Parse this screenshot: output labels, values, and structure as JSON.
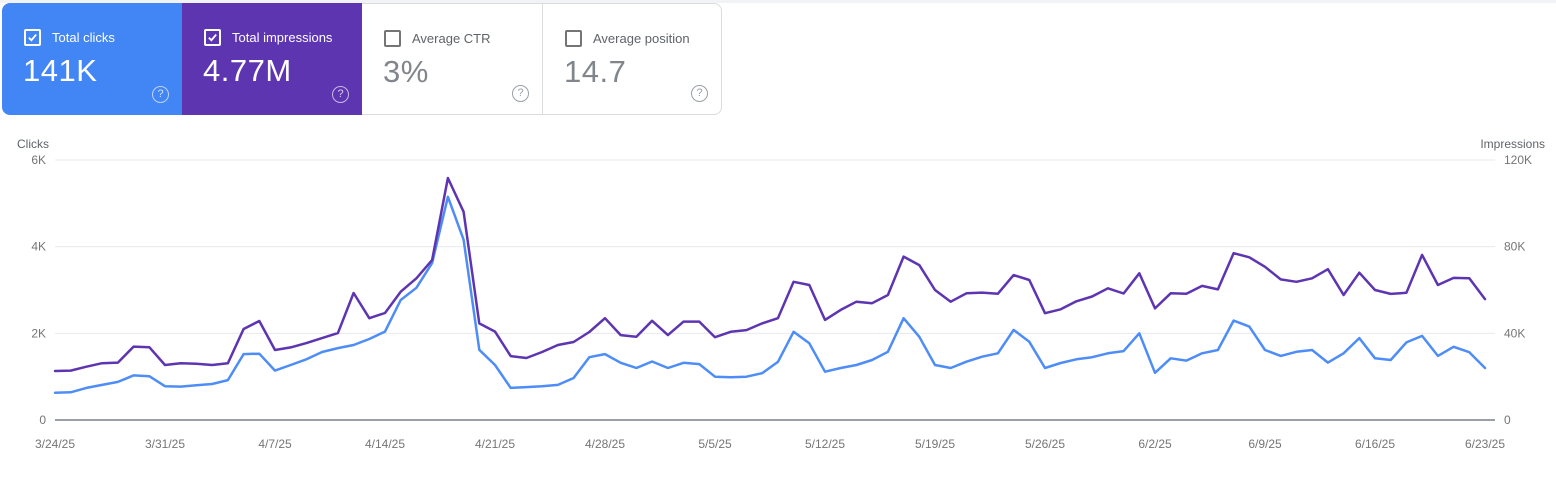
{
  "icons": {
    "help": "?"
  },
  "colors": {
    "clicks_blue": "#4285f4",
    "impressions_purple": "#5e35b1",
    "grid": "#e8eaed",
    "axis_line": "#9aa0a6"
  },
  "cards": [
    {
      "label": "Total clicks",
      "value": "141K",
      "checked": true,
      "variant": "colored",
      "bg": "#4285f4"
    },
    {
      "label": "Total impressions",
      "value": "4.77M",
      "checked": true,
      "variant": "colored",
      "bg": "#5e35b1"
    },
    {
      "label": "Average CTR",
      "value": "3%",
      "checked": false,
      "variant": "plain",
      "bg": "#ffffff"
    },
    {
      "label": "Average position",
      "value": "14.7",
      "checked": false,
      "variant": "plain",
      "bg": "#ffffff"
    }
  ],
  "chart_data": {
    "type": "line",
    "grid": true,
    "grid_color": "#e8eaed",
    "axis_line_color": "#9aa0a6",
    "left_axis": {
      "label": "Clicks",
      "max": 6000,
      "ticks": [
        {
          "label": "0",
          "value": 0
        },
        {
          "label": "2K",
          "value": 2000
        },
        {
          "label": "4K",
          "value": 4000
        },
        {
          "label": "6K",
          "value": 6000
        }
      ]
    },
    "right_axis": {
      "label": "Impressions",
      "max": 120000,
      "ticks": [
        {
          "label": "0",
          "value": 0
        },
        {
          "label": "40K",
          "value": 40000
        },
        {
          "label": "80K",
          "value": 80000
        },
        {
          "label": "120K",
          "value": 120000
        }
      ]
    },
    "x_tick_labels": [
      "3/24/25",
      "3/31/25",
      "4/7/25",
      "4/14/25",
      "4/21/25",
      "4/28/25",
      "5/5/25",
      "5/12/25",
      "5/19/25",
      "5/26/25",
      "6/2/25",
      "6/9/25",
      "6/16/25",
      "6/23/25"
    ],
    "dates": [
      "3/24/25",
      "3/25/25",
      "3/26/25",
      "3/27/25",
      "3/28/25",
      "3/29/25",
      "3/30/25",
      "3/31/25",
      "4/1/25",
      "4/2/25",
      "4/3/25",
      "4/4/25",
      "4/5/25",
      "4/6/25",
      "4/7/25",
      "4/8/25",
      "4/9/25",
      "4/10/25",
      "4/11/25",
      "4/12/25",
      "4/13/25",
      "4/14/25",
      "4/15/25",
      "4/16/25",
      "4/17/25",
      "4/18/25",
      "4/19/25",
      "4/20/25",
      "4/21/25",
      "4/22/25",
      "4/23/25",
      "4/24/25",
      "4/25/25",
      "4/26/25",
      "4/27/25",
      "4/28/25",
      "4/29/25",
      "4/30/25",
      "5/1/25",
      "5/2/25",
      "5/3/25",
      "5/4/25",
      "5/5/25",
      "5/6/25",
      "5/7/25",
      "5/8/25",
      "5/9/25",
      "5/10/25",
      "5/11/25",
      "5/12/25",
      "5/13/25",
      "5/14/25",
      "5/15/25",
      "5/16/25",
      "5/17/25",
      "5/18/25",
      "5/19/25",
      "5/20/25",
      "5/21/25",
      "5/22/25",
      "5/23/25",
      "5/24/25",
      "5/25/25",
      "5/26/25",
      "5/27/25",
      "5/28/25",
      "5/29/25",
      "5/30/25",
      "5/31/25",
      "6/1/25",
      "6/2/25",
      "6/3/25",
      "6/4/25",
      "6/5/25",
      "6/6/25",
      "6/7/25",
      "6/8/25",
      "6/9/25",
      "6/10/25",
      "6/11/25",
      "6/12/25",
      "6/13/25",
      "6/14/25",
      "6/15/25",
      "6/16/25",
      "6/17/25",
      "6/18/25",
      "6/19/25",
      "6/20/25",
      "6/21/25",
      "6/22/25",
      "6/23/25"
    ],
    "series": [
      {
        "name": "Total clicks",
        "axis": "left",
        "color": "#4e8df7",
        "values": [
          630,
          640,
          740,
          810,
          880,
          1030,
          1010,
          780,
          770,
          800,
          830,
          920,
          1520,
          1530,
          1140,
          1270,
          1400,
          1570,
          1660,
          1730,
          1870,
          2040,
          2770,
          3050,
          3620,
          5150,
          4160,
          1620,
          1270,
          740,
          760,
          780,
          810,
          970,
          1450,
          1520,
          1320,
          1200,
          1350,
          1200,
          1320,
          1290,
          1000,
          985,
          1000,
          1080,
          1340,
          2035,
          1770,
          1115,
          1200,
          1270,
          1385,
          1575,
          2350,
          1920,
          1270,
          1200,
          1345,
          1460,
          1540,
          2080,
          1805,
          1200,
          1315,
          1400,
          1450,
          1540,
          1590,
          2000,
          1090,
          1425,
          1370,
          1540,
          1615,
          2295,
          2155,
          1615,
          1480,
          1575,
          1615,
          1325,
          1540,
          1890,
          1425,
          1385,
          1790,
          1940,
          1480,
          1690,
          1565,
          1200
        ]
      },
      {
        "name": "Total impressions",
        "axis": "right",
        "color": "#5e35b1",
        "values": [
          22600,
          22800,
          24600,
          26200,
          26500,
          33900,
          33600,
          25400,
          26200,
          26000,
          25400,
          26200,
          42000,
          45700,
          32300,
          33500,
          35500,
          37800,
          40100,
          58600,
          47000,
          49400,
          59200,
          65400,
          73800,
          111700,
          96100,
          44600,
          40800,
          29500,
          28600,
          31400,
          34600,
          36000,
          40600,
          47000,
          39200,
          38400,
          45800,
          39200,
          45400,
          45400,
          38200,
          40700,
          41500,
          44600,
          47000,
          63800,
          62300,
          46200,
          50800,
          54600,
          53900,
          57700,
          75400,
          71500,
          60000,
          54600,
          58500,
          58800,
          58300,
          66900,
          64600,
          49300,
          51100,
          54800,
          57000,
          60800,
          58400,
          67700,
          51500,
          58500,
          58300,
          61900,
          60300,
          77000,
          75100,
          70700,
          64900,
          63800,
          65400,
          69600,
          57700,
          68000,
          60000,
          58200,
          58700,
          76200,
          62300,
          65600,
          65400,
          55800
        ]
      }
    ]
  }
}
